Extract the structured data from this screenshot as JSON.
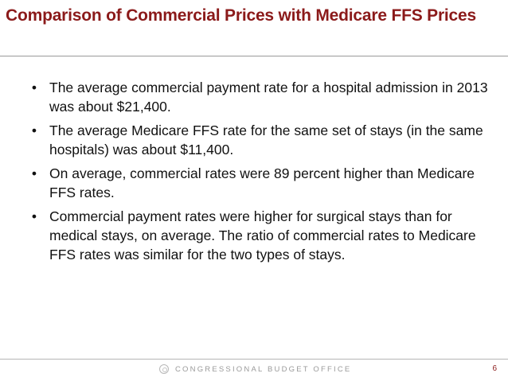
{
  "slide": {
    "title": "Comparison of Commercial Prices with Medicare FFS Prices",
    "bullet_symbol": "•",
    "bullets": [
      {
        "text": "The average commercial payment rate for a hospital admission in 2013 was about $21,400."
      },
      {
        "text": "The average Medicare FFS rate for the same set of stays (in the same hospitals) was about $11,400."
      },
      {
        "text": "On average, commercial rates were 89 percent higher than Medicare FFS rates."
      },
      {
        "text": "Commercial payment rates were higher for surgical stays than for medical stays, on average. The ratio of commercial rates to Medicare FFS rates was similar for the two types of stays."
      }
    ]
  },
  "footer": {
    "organization": "CONGRESSIONAL BUDGET OFFICE",
    "logo_icon": "cbo-seal-icon",
    "page_number": "6"
  },
  "colors": {
    "title": "#8b1a1a",
    "body_text": "#111111",
    "footer_text": "#9a9a9a",
    "rule": "#9a9a9a"
  }
}
